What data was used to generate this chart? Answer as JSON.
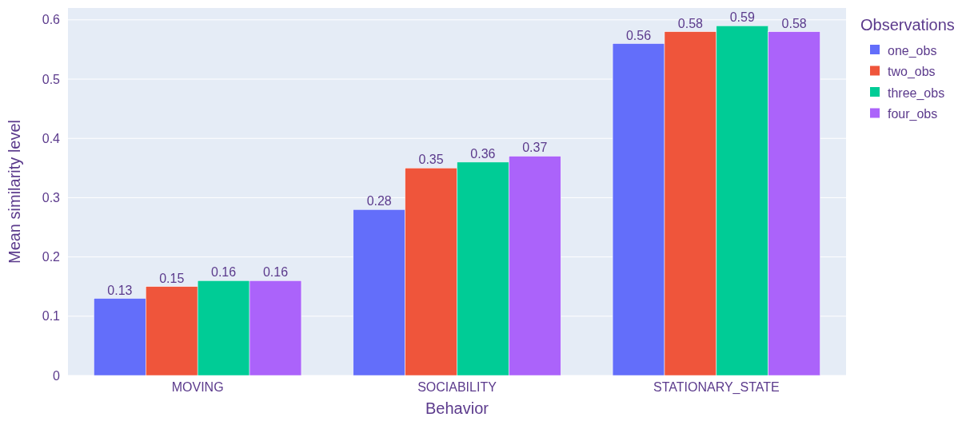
{
  "chart_data": {
    "type": "bar",
    "xlabel": "Behavior",
    "ylabel": "Mean similarity level",
    "legend_title": "Observations",
    "categories": [
      "MOVING",
      "SOCIABILITY",
      "STATIONARY_STATE"
    ],
    "series": [
      {
        "name": "one_obs",
        "color": "#636efa",
        "values": [
          0.13,
          0.28,
          0.56
        ]
      },
      {
        "name": "two_obs",
        "color": "#ef553b",
        "values": [
          0.15,
          0.35,
          0.58
        ]
      },
      {
        "name": "three_obs",
        "color": "#00cc96",
        "values": [
          0.16,
          0.36,
          0.59
        ]
      },
      {
        "name": "four_obs",
        "color": "#ab63fa",
        "values": [
          0.16,
          0.37,
          0.58
        ]
      }
    ],
    "ylim": [
      0,
      0.62
    ],
    "yticks": [
      0,
      0.1,
      0.2,
      0.3,
      0.4,
      0.5,
      0.6
    ],
    "grid": "y",
    "legend": "top right",
    "data_labels": true
  }
}
